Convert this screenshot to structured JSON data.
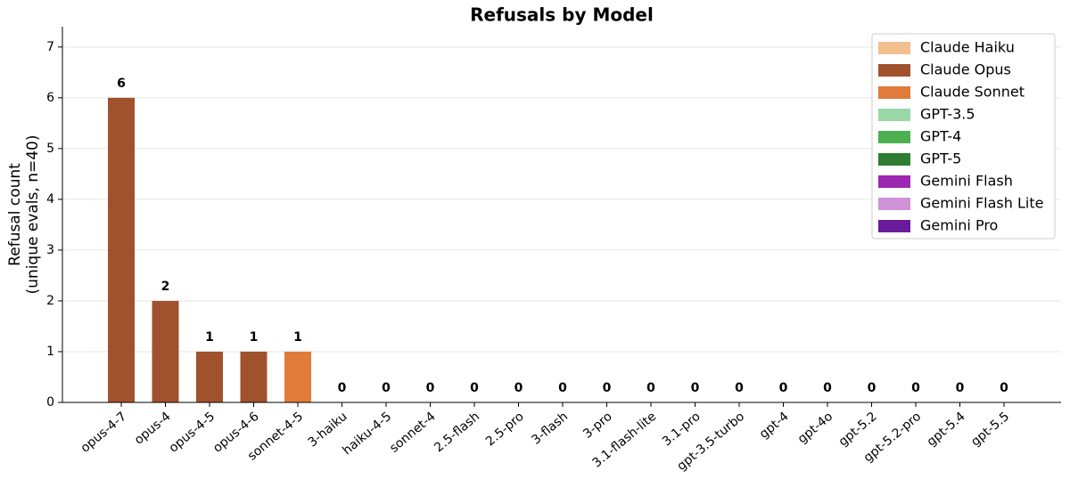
{
  "chart_data": {
    "type": "bar",
    "title": "Refusals by Model",
    "ylabel": [
      "Refusal count",
      "(unique evals, n=40)"
    ],
    "categories": [
      "opus-4-7",
      "opus-4",
      "opus-4-5",
      "opus-4-6",
      "sonnet-4-5",
      "3-haiku",
      "haiku-4-5",
      "sonnet-4",
      "2.5-flash",
      "2.5-pro",
      "3-flash",
      "3-pro",
      "3.1-flash-lite",
      "3.1-pro",
      "gpt-3.5-turbo",
      "gpt-4",
      "gpt-4o",
      "gpt-5.2",
      "gpt-5.2-pro",
      "gpt-5.4",
      "gpt-5.5"
    ],
    "values": [
      6,
      2,
      1,
      1,
      1,
      0,
      0,
      0,
      0,
      0,
      0,
      0,
      0,
      0,
      0,
      0,
      0,
      0,
      0,
      0,
      0
    ],
    "colors": [
      "#a0522d",
      "#a0522d",
      "#a0522d",
      "#a0522d",
      "#e07b39",
      "#f2c08f",
      "#f2c08f",
      "#e07b39",
      "#9c27b0",
      "#6a1b9a",
      "#9c27b0",
      "#6a1b9a",
      "#ce93d8",
      "#6a1b9a",
      "#98d8a8",
      "#4caf50",
      "#4caf50",
      "#2e7d32",
      "#2e7d32",
      "#2e7d32",
      "#2e7d32"
    ],
    "ylim": [
      0,
      7.4
    ],
    "yticks": [
      0,
      1,
      2,
      3,
      4,
      5,
      6,
      7
    ],
    "grid": true,
    "legend": {
      "location": "upper right",
      "entries": [
        {
          "name": "Claude Haiku",
          "color": "#f2c08f"
        },
        {
          "name": "Claude Opus",
          "color": "#a0522d"
        },
        {
          "name": "Claude Sonnet",
          "color": "#e07b39"
        },
        {
          "name": "GPT-3.5",
          "color": "#98d8a8"
        },
        {
          "name": "GPT-4",
          "color": "#4caf50"
        },
        {
          "name": "GPT-5",
          "color": "#2e7d32"
        },
        {
          "name": "Gemini Flash",
          "color": "#9c27b0"
        },
        {
          "name": "Gemini Flash Lite",
          "color": "#ce93d8"
        },
        {
          "name": "Gemini Pro",
          "color": "#6a1b9a"
        }
      ]
    }
  }
}
